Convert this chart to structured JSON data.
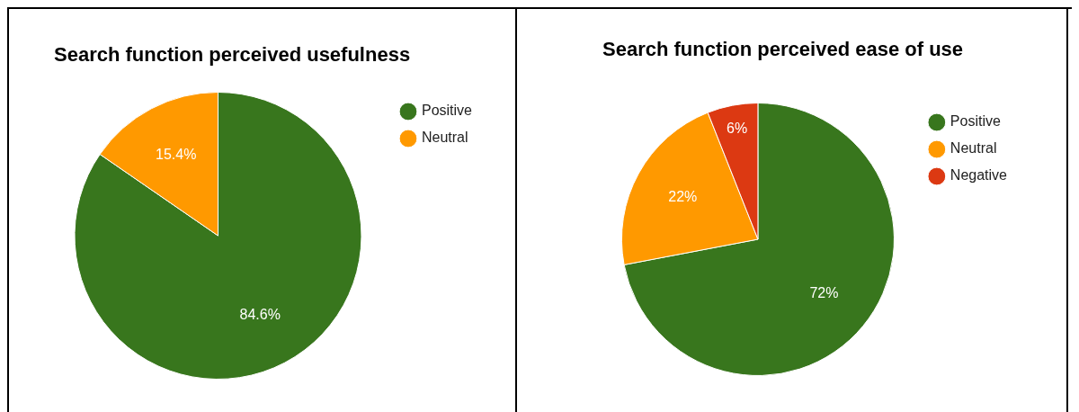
{
  "chart_data": [
    {
      "type": "pie",
      "title": "Search function perceived usefulness",
      "categories": [
        "Positive",
        "Neutral"
      ],
      "values": [
        84.6,
        15.4
      ],
      "colors": [
        "#38761d",
        "#ff9900"
      ],
      "value_labels": [
        "84.6%",
        "15.4%"
      ],
      "legend": "top right"
    },
    {
      "type": "pie",
      "title": "Search function perceived ease of use",
      "categories": [
        "Positive",
        "Neutral",
        "Negative"
      ],
      "values": [
        72,
        22,
        6
      ],
      "colors": [
        "#38761d",
        "#ff9900",
        "#dc3912"
      ],
      "value_labels": [
        "72%",
        "22%",
        "6%"
      ],
      "legend": "top right"
    }
  ]
}
